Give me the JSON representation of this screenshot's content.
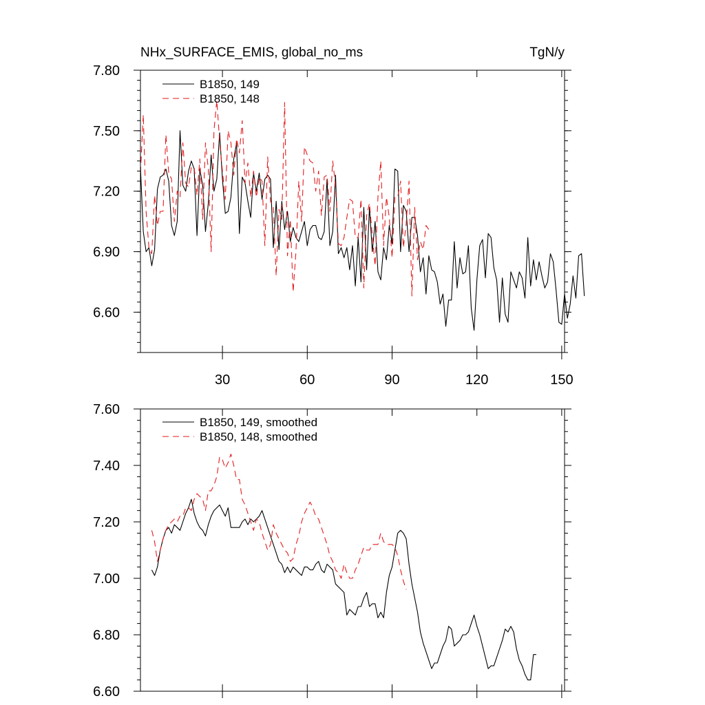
{
  "chart_data": [
    {
      "type": "line",
      "title": "NHx_SURFACE_EMIS, global_no_ms",
      "units": "TgN/y",
      "xlim": [
        1,
        151
      ],
      "ylim": [
        6.4,
        7.8
      ],
      "x_ticks": [
        30,
        60,
        90,
        120,
        150
      ],
      "x_tick_labels": [
        "30",
        "60",
        "90",
        "120",
        "150"
      ],
      "y_ticks": [
        6.6,
        6.9,
        7.2,
        7.5,
        7.8
      ],
      "y_tick_labels": [
        "6.60",
        "6.90",
        "7.20",
        "7.50",
        "7.80"
      ],
      "series": [
        {
          "name": "B1850, 149",
          "color": "#000000",
          "dash": "solid",
          "values": [
            7.32,
            7.0,
            6.9,
            6.92,
            6.83,
            6.91,
            7.21,
            7.27,
            7.28,
            7.31,
            7.25,
            7.03,
            6.98,
            7.05,
            7.5,
            7.23,
            7.2,
            7.3,
            7.35,
            7.31,
            6.98,
            7.31,
            7.23,
            7.0,
            7.14,
            7.38,
            7.2,
            7.26,
            7.49,
            7.26,
            7.09,
            7.1,
            7.17,
            7.36,
            7.44,
            6.99,
            7.27,
            7.24,
            7.15,
            7.07,
            7.29,
            7.2,
            7.29,
            7.16,
            7.26,
            7.28,
            7.26,
            6.92,
            7.15,
            6.91,
            7.15,
            7.01,
            7.1,
            6.95,
            7.02,
            6.97,
            6.95,
            7.0,
            7.05,
            6.93,
            7.01,
            7.03,
            7.03,
            6.97,
            6.96,
            7.0,
            7.26,
            6.93,
            7.0,
            7.28,
            6.89,
            6.92,
            6.87,
            6.92,
            6.81,
            6.93,
            6.73,
            6.97,
            6.75,
            7.12,
            6.81,
            7.12,
            6.9,
            7.05,
            6.8,
            6.76,
            6.92,
            6.86,
            7.03,
            6.94,
            7.31,
            7.3,
            6.9,
            7.13,
            7.1,
            6.9,
            7.07,
            7.07,
            6.98,
            6.8,
            6.87,
            6.69,
            6.88,
            6.81,
            6.8,
            6.75,
            6.64,
            6.69,
            6.53,
            6.66,
            6.66,
            6.95,
            6.72,
            6.87,
            6.79,
            6.8,
            6.93,
            6.62,
            6.51,
            6.76,
            6.93,
            6.96,
            6.77,
            6.99,
            6.97,
            6.82,
            6.76,
            6.55,
            6.77,
            6.59,
            6.55,
            6.8,
            6.76,
            6.72,
            6.8,
            6.77,
            6.67,
            6.97,
            6.73,
            6.86,
            6.76,
            6.85,
            6.78,
            6.72,
            6.75,
            6.89,
            6.85,
            6.71,
            6.55,
            6.54,
            6.69,
            6.57,
            6.64,
            6.78,
            6.67,
            6.88,
            6.89,
            6.68
          ]
        },
        {
          "name": "B1850, 148",
          "color": "#e31a1c",
          "dash": "dashed",
          "values": [
            7.29,
            7.58,
            7.1,
            6.92,
            6.89,
            7.18,
            7.03,
            7.1,
            7.1,
            7.48,
            7.29,
            7.26,
            7.05,
            7.2,
            7.17,
            7.44,
            7.24,
            7.22,
            7.32,
            7.32,
            7.18,
            7.36,
            7.06,
            7.44,
            7.31,
            6.9,
            7.5,
            7.65,
            7.45,
            7.3,
            7.16,
            7.5,
            7.44,
            7.28,
            7.46,
            7.39,
            7.55,
            7.24,
            7.34,
            7.17,
            7.3,
            7.17,
            7.27,
            7.25,
            6.93,
            7.37,
            7.15,
            7.12,
            6.78,
            7.11,
            7.06,
            7.64,
            6.88,
            7.06,
            6.7,
            6.9,
            7.25,
            7.05,
            7.42,
            7.38,
            7.35,
            7.34,
            7.2,
            7.3,
            7.08,
            7.27,
            7.28,
            7.1,
            7.35,
            7.23,
            6.94,
            6.93,
            6.97,
            7.07,
            7.16,
            7.15,
            6.97,
            6.97,
            7.16,
            6.72,
            7.08,
            7.14,
            6.98,
            6.83,
            7.17,
            7.35,
            6.93,
            7.17,
            7.07,
            6.87,
            7.17,
            7.17,
            7.25,
            6.92,
            7.04,
            7.25,
            6.68,
            7.12,
            6.86,
            6.95,
            6.91,
            7.03,
            7.01
          ]
        }
      ]
    },
    {
      "type": "line",
      "xlim": [
        1,
        151
      ],
      "ylim": [
        6.6,
        7.6
      ],
      "x_ticks": [
        30,
        60,
        90,
        120,
        150
      ],
      "y_ticks": [
        6.6,
        6.8,
        7.0,
        7.2,
        7.4,
        7.6
      ],
      "y_tick_labels": [
        "6.60",
        "6.80",
        "7.00",
        "7.20",
        "7.40",
        "7.60"
      ],
      "series": [
        {
          "name": "B1850, 149, smoothed",
          "color": "#000000",
          "dash": "solid",
          "x_start": 5,
          "values": [
            7.03,
            7.01,
            7.04,
            7.1,
            7.14,
            7.17,
            7.18,
            7.16,
            7.19,
            7.18,
            7.17,
            7.2,
            7.23,
            7.25,
            7.28,
            7.23,
            7.2,
            7.18,
            7.17,
            7.15,
            7.19,
            7.22,
            7.24,
            7.25,
            7.26,
            7.24,
            7.22,
            7.25,
            7.18,
            7.18,
            7.18,
            7.18,
            7.2,
            7.21,
            7.19,
            7.21,
            7.2,
            7.21,
            7.22,
            7.24,
            7.21,
            7.18,
            7.15,
            7.12,
            7.09,
            7.06,
            7.05,
            7.02,
            7.04,
            7.02,
            7.04,
            7.03,
            7.02,
            7.01,
            7.04,
            7.04,
            7.03,
            7.03,
            7.05,
            7.06,
            7.03,
            7.02,
            7.05,
            7.04,
            7.03,
            6.98,
            6.97,
            6.96,
            6.95,
            6.87,
            6.89,
            6.88,
            6.87,
            6.9,
            6.9,
            6.93,
            6.95,
            6.9,
            6.91,
            6.91,
            6.86,
            6.88,
            6.86,
            6.95,
            7.01,
            7.04,
            7.1,
            7.16,
            7.17,
            7.16,
            7.14,
            7.05,
            6.98,
            6.93,
            6.88,
            6.81,
            6.77,
            6.74,
            6.71,
            6.68,
            6.7,
            6.7,
            6.73,
            6.76,
            6.78,
            6.83,
            6.82,
            6.76,
            6.77,
            6.78,
            6.8,
            6.8,
            6.81,
            6.84,
            6.87,
            6.83,
            6.8,
            6.76,
            6.72,
            6.68,
            6.69,
            6.69,
            6.72,
            6.75,
            6.78,
            6.82,
            6.81,
            6.83,
            6.81,
            6.75,
            6.71,
            6.69,
            6.66,
            6.64,
            6.64,
            6.73,
            6.73
          ]
        },
        {
          "name": "B1850, 148, smoothed",
          "color": "#e31a1c",
          "dash": "dashed",
          "x_start": 5,
          "values": [
            7.17,
            7.13,
            7.06,
            7.1,
            7.14,
            7.17,
            7.19,
            7.2,
            7.21,
            7.2,
            7.22,
            7.22,
            7.25,
            7.25,
            7.24,
            7.28,
            7.3,
            7.29,
            7.28,
            7.24,
            7.31,
            7.31,
            7.33,
            7.36,
            7.43,
            7.42,
            7.39,
            7.41,
            7.44,
            7.4,
            7.35,
            7.35,
            7.28,
            7.26,
            7.23,
            7.2,
            7.17,
            7.21,
            7.2,
            7.16,
            7.13,
            7.1,
            7.12,
            7.19,
            7.16,
            7.14,
            7.12,
            7.1,
            7.09,
            7.06,
            7.07,
            7.12,
            7.15,
            7.2,
            7.23,
            7.25,
            7.27,
            7.25,
            7.22,
            7.21,
            7.18,
            7.15,
            7.12,
            7.08,
            7.06,
            7.03,
            7.02,
            7.0,
            7.05,
            7.02,
            7.0,
            7.0,
            7.03,
            7.05,
            7.08,
            7.11,
            7.1,
            7.1,
            7.12,
            7.12,
            7.12,
            7.16,
            7.13,
            7.12,
            7.12,
            7.12,
            7.11,
            7.08,
            7.03,
            6.99,
            6.96
          ]
        }
      ]
    }
  ]
}
